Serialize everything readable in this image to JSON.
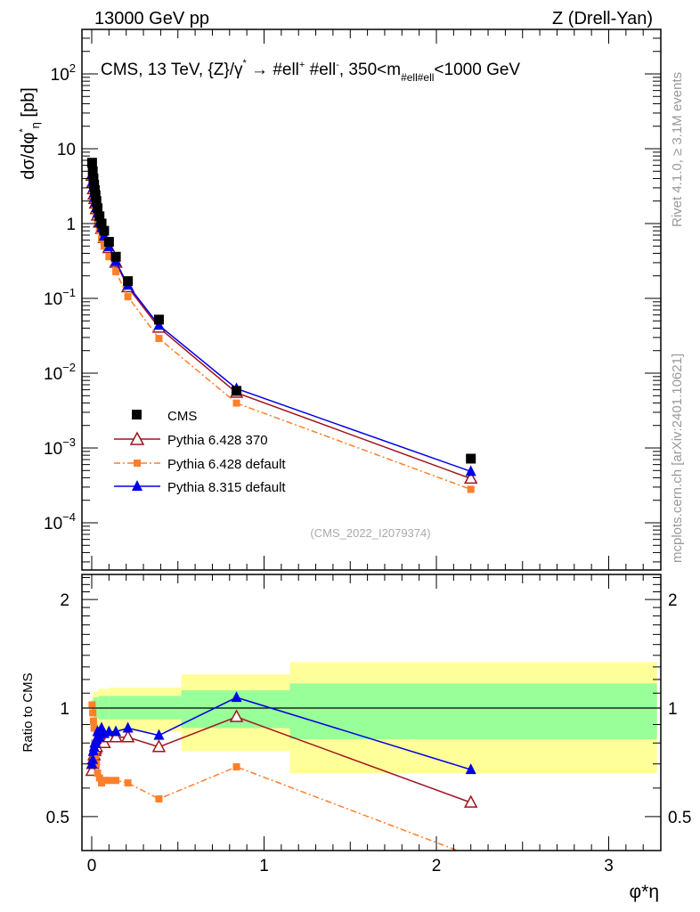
{
  "header": {
    "left": "13000 GeV pp",
    "right": "Z (Drell-Yan)"
  },
  "side_labels": {
    "rivet": "Rivet 4.1.0, ≥ 3.1M events",
    "mcplots": "mcplots.cern.ch [arXiv:2401.10621]"
  },
  "watermark": "(CMS_2022_I2079374)",
  "title_parts": {
    "a": "CMS, 13 TeV, {Z}/γ",
    "star": "*",
    "b": " →  #ell",
    "plus": "+",
    "c": " #ell",
    "minus": "-",
    "d": ", 350<m",
    "sub": "#ell#ell",
    "e": "<1000 GeV"
  },
  "colors": {
    "cms": "#000000",
    "p6_370": "#a0141e",
    "p6_default": "#ff7f2a",
    "p8": "#0000e6",
    "band_outer": "#ffff99",
    "band_inner": "#99ff99"
  },
  "chart_data": [
    {
      "type": "scatter",
      "title": "CMS, 13 TeV, Z/γ* → ℓ+ℓ-, 350<mℓℓ<1000 GeV",
      "xlabel": "φ*η",
      "ylabel": "dσ/dφ*η [pb]",
      "yscale": "log",
      "ylim": [
        3e-05,
        380
      ],
      "xlim": [
        -0.057,
        3.29
      ],
      "y_tick_labels": [
        {
          "base": "10",
          "exp": "2",
          "value": 100
        },
        {
          "base": "10",
          "exp": "",
          "value": 10
        },
        {
          "base": "1",
          "exp": "",
          "value": 1
        },
        {
          "base": "10",
          "exp": "−1",
          "value": 0.1
        },
        {
          "base": "10",
          "exp": "−2",
          "value": 0.01
        },
        {
          "base": "10",
          "exp": "−3",
          "value": 0.001
        },
        {
          "base": "10",
          "exp": "−4",
          "value": 0.0001
        }
      ],
      "legend": [
        "CMS",
        "Pythia 6.428 370",
        "Pythia 6.428 default",
        "Pythia 8.315 default"
      ],
      "legend_position": "bottom-left",
      "x": [
        0.002,
        0.006,
        0.01,
        0.014,
        0.018,
        0.022,
        0.027,
        0.034,
        0.045,
        0.057,
        0.072,
        0.1,
        0.14,
        0.21,
        0.39,
        0.84,
        2.2
      ],
      "series": [
        {
          "name": "CMS",
          "values": [
            6.5,
            5.0,
            4.0,
            3.3,
            2.8,
            2.4,
            2.0,
            1.6,
            1.25,
            1.0,
            0.8,
            0.57,
            0.36,
            0.17,
            0.052,
            0.0058,
            0.00072
          ]
        },
        {
          "name": "Pythia 6.428 370",
          "values": [
            4.36,
            3.5,
            2.88,
            2.44,
            2.13,
            1.85,
            1.56,
            1.28,
            1.03,
            0.85,
            0.64,
            0.47,
            0.3,
            0.141,
            0.0406,
            0.00548,
            0.00039
          ]
        },
        {
          "name": "Pythia 6.428 default",
          "values": [
            6.63,
            4.85,
            3.68,
            2.9,
            2.24,
            1.78,
            1.4,
            1.06,
            0.8,
            0.62,
            0.5,
            0.36,
            0.227,
            0.105,
            0.0291,
            0.00398,
            0.00028
          ]
        },
        {
          "name": "Pythia 8.315 default",
          "values": [
            4.55,
            3.6,
            3.04,
            2.57,
            2.24,
            1.92,
            1.64,
            1.38,
            1.04,
            0.88,
            0.68,
            0.49,
            0.31,
            0.15,
            0.0437,
            0.00621,
            0.000486
          ]
        }
      ]
    },
    {
      "type": "line",
      "ylabel": "Ratio to CMS",
      "xlabel": "φ*η",
      "yscale": "log",
      "ylim": [
        0.4,
        2.35
      ],
      "xlim": [
        -0.057,
        3.29
      ],
      "y_tick_labels": [
        "2",
        "1",
        "0.5"
      ],
      "y_tick_values": [
        2,
        1,
        0.5
      ],
      "x_tick_labels": [
        "0",
        "1",
        "2",
        "3"
      ],
      "x_tick_values": [
        0,
        1,
        2,
        3
      ],
      "x": [
        0.002,
        0.006,
        0.01,
        0.014,
        0.018,
        0.022,
        0.027,
        0.034,
        0.045,
        0.057,
        0.072,
        0.1,
        0.14,
        0.21,
        0.39,
        0.84,
        2.2
      ],
      "series": [
        {
          "name": "Pythia 6.428 370",
          "values": [
            0.67,
            0.7,
            0.72,
            0.74,
            0.76,
            0.77,
            0.78,
            0.8,
            0.82,
            0.85,
            0.8,
            0.83,
            0.83,
            0.83,
            0.78,
            0.945,
            0.547
          ]
        },
        {
          "name": "Pythia 6.428 default",
          "values": [
            1.02,
            0.97,
            0.92,
            0.88,
            0.8,
            0.74,
            0.7,
            0.66,
            0.64,
            0.62,
            0.63,
            0.63,
            0.63,
            0.62,
            0.56,
            0.687,
            0.39
          ]
        },
        {
          "name": "Pythia 8.315 default",
          "values": [
            0.7,
            0.72,
            0.76,
            0.78,
            0.8,
            0.8,
            0.82,
            0.86,
            0.83,
            0.88,
            0.85,
            0.86,
            0.86,
            0.88,
            0.84,
            1.07,
            0.675
          ]
        }
      ],
      "bands": {
        "edges": [
          0,
          0.01,
          0.04,
          0.1,
          0.52,
          1.15,
          3.28
        ],
        "outer": [
          [
            0.9,
            1.08
          ],
          [
            0.88,
            1.11
          ],
          [
            0.87,
            1.13
          ],
          [
            0.86,
            1.14
          ],
          [
            0.76,
            1.24
          ],
          [
            0.66,
            1.34
          ]
        ],
        "inner": [
          [
            0.95,
            1.05
          ],
          [
            0.94,
            1.07
          ],
          [
            0.93,
            1.08
          ],
          [
            0.93,
            1.08
          ],
          [
            0.88,
            1.12
          ],
          [
            0.82,
            1.17
          ]
        ]
      }
    }
  ]
}
